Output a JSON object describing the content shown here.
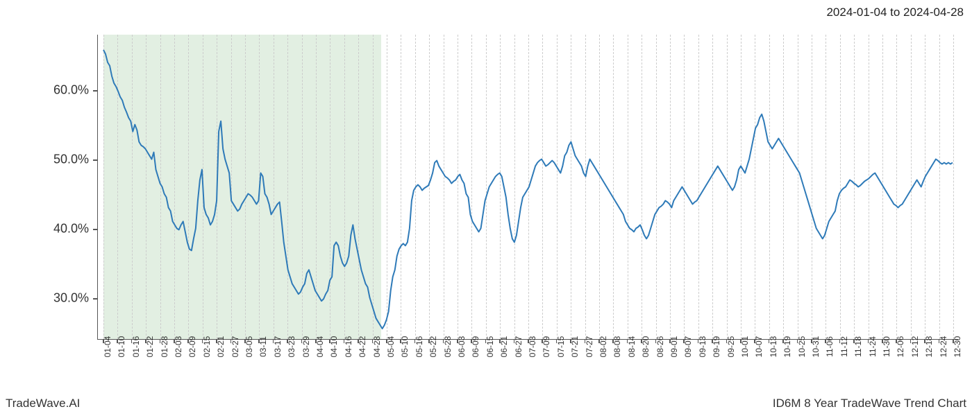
{
  "header": {
    "date_range": "2024-01-04 to 2024-04-28"
  },
  "footer": {
    "brand": "TradeWave.AI",
    "title": "ID6M 8 Year TradeWave Trend Chart"
  },
  "chart": {
    "type": "line",
    "background_color": "#ffffff",
    "line_color": "#2e7ab8",
    "line_width": 2,
    "grid_color": "#cccccc",
    "axis_color": "#555555",
    "highlight": {
      "start_label": "01-04",
      "end_label": "04-28",
      "color": "rgba(140,190,140,0.25)"
    },
    "y_axis": {
      "min": 24,
      "max": 68,
      "ticks": [
        30,
        40,
        50,
        60
      ],
      "tick_labels": [
        "30.0%",
        "40.0%",
        "50.0%",
        "60.0%"
      ],
      "label_fontsize": 18,
      "label_color": "#333333"
    },
    "x_axis": {
      "label_fontsize": 12,
      "label_color": "#333333",
      "labels": [
        "01-04",
        "01-10",
        "01-16",
        "01-22",
        "01-28",
        "02-03",
        "02-09",
        "02-15",
        "02-21",
        "02-27",
        "03-05",
        "03-11",
        "03-17",
        "03-23",
        "03-29",
        "04-04",
        "04-10",
        "04-16",
        "04-22",
        "04-28",
        "05-04",
        "05-10",
        "05-16",
        "05-22",
        "05-28",
        "06-03",
        "06-09",
        "06-15",
        "06-21",
        "06-27",
        "07-03",
        "07-09",
        "07-15",
        "07-21",
        "07-27",
        "08-02",
        "08-08",
        "08-14",
        "08-20",
        "08-26",
        "09-01",
        "09-07",
        "09-13",
        "09-19",
        "09-25",
        "10-01",
        "10-07",
        "10-13",
        "10-19",
        "10-25",
        "10-31",
        "11-06",
        "11-12",
        "11-18",
        "11-24",
        "11-30",
        "12-06",
        "12-12",
        "12-18",
        "12-24",
        "12-30"
      ]
    },
    "series": {
      "values": [
        65.8,
        65.2,
        64.0,
        63.5,
        62.0,
        61.0,
        60.5,
        59.8,
        59.0,
        58.5,
        57.5,
        56.8,
        56.0,
        55.5,
        54.0,
        55.0,
        54.2,
        52.5,
        52.0,
        51.8,
        51.5,
        51.0,
        50.5,
        50.0,
        51.0,
        48.5,
        47.5,
        46.5,
        46.0,
        45.0,
        44.5,
        43.0,
        42.5,
        41.0,
        40.5,
        40.0,
        39.8,
        40.5,
        41.0,
        39.5,
        38.0,
        37.0,
        36.8,
        38.5,
        40.0,
        44.0,
        47.0,
        48.5,
        43.0,
        42.0,
        41.5,
        40.5,
        41.0,
        42.0,
        44.0,
        54.0,
        55.5,
        51.5,
        50.0,
        49.0,
        48.0,
        44.0,
        43.5,
        43.0,
        42.5,
        42.8,
        43.5,
        44.0,
        44.5,
        45.0,
        44.8,
        44.5,
        44.0,
        43.5,
        44.0,
        48.0,
        47.5,
        45.0,
        44.5,
        43.5,
        42.0,
        42.5,
        43.0,
        43.5,
        43.8,
        41.0,
        38.0,
        36.0,
        34.0,
        33.0,
        32.0,
        31.5,
        31.0,
        30.5,
        30.8,
        31.5,
        32.0,
        33.5,
        34.0,
        33.0,
        32.0,
        31.0,
        30.5,
        30.0,
        29.5,
        29.8,
        30.5,
        31.0,
        32.5,
        33.0,
        37.5,
        38.0,
        37.5,
        36.0,
        35.0,
        34.5,
        35.0,
        36.0,
        39.0,
        40.5,
        38.5,
        37.0,
        35.5,
        34.0,
        33.0,
        32.0,
        31.5,
        30.0,
        29.0,
        28.0,
        27.0,
        26.5,
        26.0,
        25.5,
        26.0,
        26.8,
        28.0,
        31.0,
        33.0,
        34.0,
        36.0,
        37.0,
        37.5,
        37.8,
        37.5,
        38.0,
        40.0,
        44.0,
        45.5,
        46.0,
        46.3,
        46.0,
        45.5,
        45.8,
        46.0,
        46.2,
        47.0,
        48.0,
        49.5,
        49.8,
        49.0,
        48.5,
        48.0,
        47.5,
        47.3,
        47.0,
        46.5,
        46.8,
        47.0,
        47.5,
        47.8,
        47.0,
        46.5,
        45.0,
        44.5,
        42.0,
        41.0,
        40.5,
        40.0,
        39.5,
        40.0,
        42.0,
        44.0,
        45.0,
        46.0,
        46.5,
        47.0,
        47.5,
        47.8,
        48.0,
        47.5,
        46.0,
        44.5,
        42.0,
        40.0,
        38.5,
        38.0,
        39.0,
        41.0,
        43.0,
        44.5,
        45.0,
        45.5,
        46.0,
        47.0,
        48.0,
        49.0,
        49.5,
        49.8,
        50.0,
        49.5,
        49.0,
        49.2,
        49.5,
        49.8,
        49.5,
        49.0,
        48.5,
        48.0,
        49.0,
        50.5,
        51.0,
        52.0,
        52.5,
        51.5,
        50.5,
        50.0,
        49.5,
        49.0,
        48.0,
        47.5,
        49.0,
        50.0,
        49.5,
        49.0,
        48.5,
        48.0,
        47.5,
        47.0,
        46.5,
        46.0,
        45.5,
        45.0,
        44.5,
        44.0,
        43.5,
        43.0,
        42.5,
        42.0,
        41.0,
        40.5,
        40.0,
        39.8,
        39.5,
        40.0,
        40.2,
        40.5,
        39.8,
        39.0,
        38.5,
        39.0,
        40.0,
        41.0,
        42.0,
        42.5,
        43.0,
        43.2,
        43.5,
        44.0,
        43.8,
        43.5,
        43.0,
        44.0,
        44.5,
        45.0,
        45.5,
        46.0,
        45.5,
        45.0,
        44.5,
        44.0,
        43.5,
        43.8,
        44.0,
        44.5,
        45.0,
        45.5,
        46.0,
        46.5,
        47.0,
        47.5,
        48.0,
        48.5,
        49.0,
        48.5,
        48.0,
        47.5,
        47.0,
        46.5,
        46.0,
        45.5,
        46.0,
        47.0,
        48.5,
        49.0,
        48.5,
        48.0,
        49.0,
        50.0,
        51.5,
        53.0,
        54.5,
        55.0,
        56.0,
        56.5,
        55.5,
        54.0,
        52.5,
        52.0,
        51.5,
        52.0,
        52.5,
        53.0,
        52.5,
        52.0,
        51.5,
        51.0,
        50.5,
        50.0,
        49.5,
        49.0,
        48.5,
        48.0,
        47.0,
        46.0,
        45.0,
        44.0,
        43.0,
        42.0,
        41.0,
        40.0,
        39.5,
        39.0,
        38.5,
        39.0,
        40.0,
        41.0,
        41.5,
        42.0,
        42.5,
        44.0,
        45.0,
        45.5,
        45.8,
        46.0,
        46.5,
        47.0,
        46.8,
        46.5,
        46.3,
        46.0,
        46.2,
        46.5,
        46.8,
        47.0,
        47.2,
        47.5,
        47.8,
        48.0,
        47.5,
        47.0,
        46.5,
        46.0,
        45.5,
        45.0,
        44.5,
        44.0,
        43.5,
        43.3,
        43.0,
        43.3,
        43.5,
        44.0,
        44.5,
        45.0,
        45.5,
        46.0,
        46.5,
        47.0,
        46.5,
        46.0,
        46.8,
        47.5,
        48.0,
        48.5,
        49.0,
        49.5,
        50.0,
        49.8,
        49.5,
        49.3,
        49.5,
        49.3,
        49.5,
        49.3,
        49.5
      ]
    }
  }
}
